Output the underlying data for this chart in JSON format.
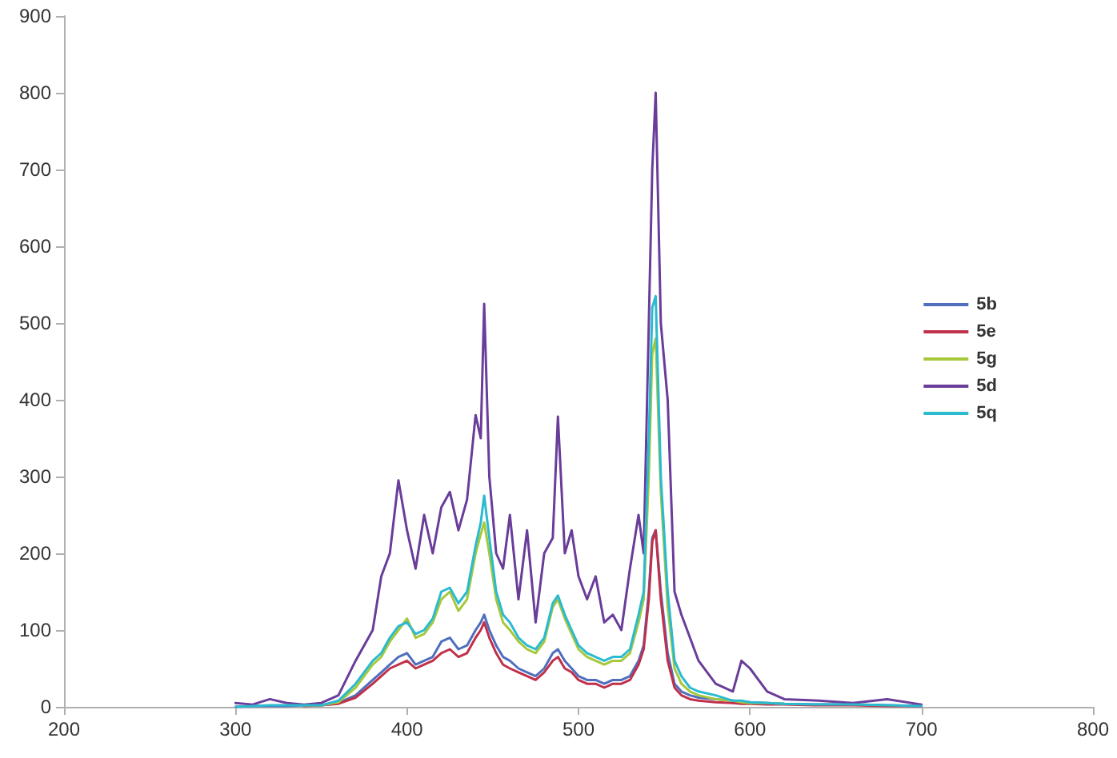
{
  "chart_data": {
    "type": "line",
    "x": [
      300,
      310,
      320,
      330,
      340,
      350,
      360,
      370,
      380,
      385,
      390,
      395,
      400,
      405,
      410,
      415,
      420,
      425,
      430,
      435,
      440,
      443,
      445,
      448,
      452,
      456,
      460,
      465,
      470,
      475,
      480,
      485,
      488,
      492,
      496,
      500,
      505,
      510,
      515,
      520,
      525,
      530,
      535,
      538,
      541,
      543,
      545,
      548,
      552,
      556,
      560,
      565,
      570,
      580,
      590,
      595,
      600,
      610,
      620,
      640,
      660,
      680,
      700
    ],
    "xlim": [
      200,
      800
    ],
    "xticks": [
      200,
      300,
      400,
      500,
      600,
      700,
      800
    ],
    "ylim": [
      0,
      900
    ],
    "yticks": [
      0,
      100,
      200,
      300,
      400,
      500,
      600,
      700,
      800,
      900
    ],
    "grid": false,
    "legend": "right",
    "marker": "none",
    "line_style": "solid",
    "series": [
      {
        "name": "5b",
        "color": "#4f6fbd",
        "values": [
          0,
          1,
          1,
          1,
          2,
          2,
          5,
          15,
          35,
          45,
          55,
          65,
          70,
          55,
          60,
          65,
          85,
          90,
          75,
          80,
          100,
          110,
          120,
          100,
          80,
          65,
          60,
          50,
          45,
          40,
          50,
          70,
          75,
          60,
          50,
          40,
          35,
          35,
          30,
          35,
          35,
          40,
          60,
          80,
          150,
          220,
          230,
          150,
          70,
          30,
          20,
          15,
          12,
          10,
          8,
          7,
          6,
          5,
          4,
          3,
          3,
          2,
          1
        ]
      },
      {
        "name": "5e",
        "color": "#c0304a",
        "values": [
          null,
          null,
          null,
          null,
          1,
          2,
          4,
          12,
          30,
          40,
          50,
          55,
          60,
          50,
          55,
          60,
          70,
          75,
          65,
          70,
          90,
          100,
          110,
          90,
          70,
          55,
          50,
          45,
          40,
          35,
          45,
          60,
          65,
          50,
          45,
          35,
          30,
          30,
          25,
          30,
          30,
          35,
          55,
          75,
          140,
          215,
          230,
          140,
          60,
          25,
          15,
          10,
          8,
          6,
          5,
          4,
          4,
          3,
          3,
          2,
          2,
          1,
          1
        ]
      },
      {
        "name": "5g",
        "color": "#a6c83a",
        "values": [
          null,
          null,
          null,
          null,
          2,
          2,
          6,
          25,
          55,
          65,
          85,
          100,
          115,
          90,
          95,
          110,
          140,
          150,
          125,
          140,
          200,
          225,
          240,
          200,
          140,
          110,
          100,
          85,
          75,
          70,
          85,
          130,
          140,
          115,
          95,
          75,
          65,
          60,
          55,
          60,
          60,
          70,
          110,
          140,
          300,
          460,
          480,
          280,
          130,
          50,
          30,
          20,
          15,
          10,
          8,
          6,
          5,
          5,
          4,
          null,
          null,
          null,
          null
        ]
      },
      {
        "name": "5d",
        "color": "#6a3d9a",
        "values": [
          5,
          3,
          10,
          5,
          3,
          5,
          15,
          60,
          100,
          170,
          200,
          295,
          230,
          180,
          250,
          200,
          260,
          280,
          230,
          270,
          380,
          350,
          525,
          300,
          200,
          180,
          250,
          140,
          230,
          110,
          200,
          220,
          378,
          200,
          230,
          170,
          140,
          170,
          110,
          120,
          100,
          180,
          250,
          200,
          500,
          700,
          800,
          500,
          400,
          150,
          120,
          90,
          60,
          30,
          20,
          60,
          50,
          20,
          10,
          8,
          5,
          10,
          3
        ]
      },
      {
        "name": "5q",
        "color": "#2bbad0",
        "values": [
          0,
          1,
          2,
          2,
          2,
          2,
          8,
          30,
          60,
          70,
          90,
          105,
          110,
          95,
          100,
          115,
          150,
          155,
          135,
          150,
          210,
          240,
          275,
          220,
          150,
          120,
          110,
          90,
          80,
          75,
          90,
          135,
          145,
          120,
          100,
          80,
          70,
          65,
          60,
          65,
          65,
          75,
          120,
          150,
          350,
          520,
          535,
          300,
          150,
          60,
          40,
          25,
          20,
          15,
          8,
          8,
          6,
          5,
          4,
          3,
          3,
          2,
          1
        ]
      }
    ]
  }
}
